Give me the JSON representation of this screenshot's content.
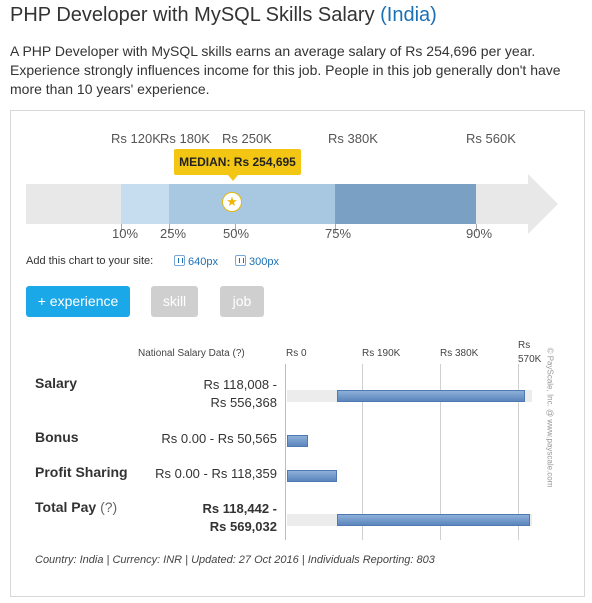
{
  "title": {
    "main": "PHP Developer with MySQL Skills Salary",
    "country": "(India)"
  },
  "intro": "A PHP Developer with MySQL skills earns an average salary of Rs 254,696 per year. Experience strongly influences income for this job. People in this job generally don't have more than 10 years' experience.",
  "chart_data": [
    {
      "type": "bar",
      "title": "",
      "median_label": "MEDIAN: Rs 254,695",
      "median_value": 254695,
      "percentiles": [
        {
          "label": "10%",
          "value": 120000,
          "value_label": "Rs 120K"
        },
        {
          "label": "25%",
          "value": 180000,
          "value_label": "Rs 180K"
        },
        {
          "label": "50%",
          "value": 250000,
          "value_label": "Rs 250K"
        },
        {
          "label": "75%",
          "value": 380000,
          "value_label": "Rs 380K"
        },
        {
          "label": "90%",
          "value": 560000,
          "value_label": "Rs 560K"
        }
      ],
      "band_colors": [
        "#c6ddef",
        "#a8c8e2",
        "#a8c8e2",
        "#7aa0c4"
      ]
    },
    {
      "type": "bar",
      "title": "National Salary Data (?)",
      "x_ticks": [
        "Rs 0",
        "Rs 190K",
        "Rs 380K",
        "Rs 570K"
      ],
      "xlim": [
        0,
        570000
      ],
      "series": [
        {
          "name": "Salary",
          "min": 118008,
          "max": 556368,
          "range_label": "Rs 118,008 - Rs 556,368"
        },
        {
          "name": "Bonus",
          "min": 0,
          "max": 50565,
          "range_label": "Rs 0.00 - Rs 50,565"
        },
        {
          "name": "Profit Sharing",
          "min": 0,
          "max": 118359,
          "range_label": "Rs 0.00 - Rs 118,359"
        },
        {
          "name": "Total Pay",
          "min": 118442,
          "max": 569032,
          "range_label": "Rs 118,442 - Rs 569,032"
        }
      ]
    }
  ],
  "embed": {
    "label": "Add this chart to your site:",
    "link_640": "640px",
    "link_300": "300px"
  },
  "filters": {
    "experience": "+ experience",
    "skill": "skill",
    "job": "job"
  },
  "table": {
    "header": "National Salary Data (?)",
    "rows": [
      {
        "label": "Salary",
        "help": "",
        "value_line1": "Rs 118,008 -",
        "value_line2": "Rs 556,368"
      },
      {
        "label": "Bonus",
        "help": "",
        "value_line1": "Rs 0.00 - Rs 50,565",
        "value_line2": ""
      },
      {
        "label": "Profit Sharing",
        "help": "",
        "value_line1": "Rs 0.00 - Rs 118,359",
        "value_line2": ""
      },
      {
        "label": "Total Pay",
        "help": "(?)",
        "value_line1": "Rs 118,442 -",
        "value_line2": "Rs 569,032"
      }
    ],
    "tick_labels": [
      "Rs 0",
      "Rs 190K",
      "Rs 380K",
      "Rs",
      "570K"
    ]
  },
  "footer": "Country: India | Currency: INR | Updated: 27 Oct 2016 | Individuals Reporting: 803",
  "copyright": "© PayScale, Inc. @ www.payscale.com",
  "colors": {
    "accent": "#1ba8e8",
    "median": "#f3c614",
    "link": "#1a6fb5"
  }
}
